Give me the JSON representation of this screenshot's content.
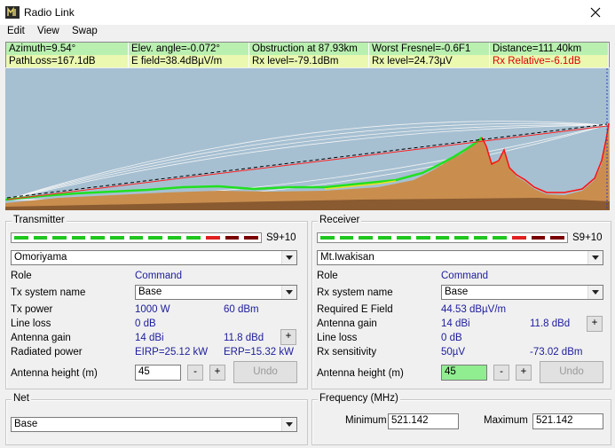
{
  "window": {
    "title": "Radio Link"
  },
  "menu": [
    "Edit",
    "View",
    "Swap"
  ],
  "status": {
    "row1": [
      "Azimuth=9.54°",
      "Elev. angle=-0.072°",
      "Obstruction at 87.93km",
      "Worst Fresnel=-0.6F1",
      "Distance=111.40km"
    ],
    "row2": [
      "PathLoss=167.1dB",
      "E field=38.4dBµV/m",
      "Rx level=-79.1dBm",
      "Rx level=24.73µV",
      "Rx Relative=-6.1dB"
    ]
  },
  "transmitter": {
    "legend": "Transmitter",
    "meter_label": "S9+10",
    "station": "Omoriyama",
    "role_label": "Role",
    "role": "Command",
    "system_label": "Tx system name",
    "system": "Base",
    "power_label": "Tx power",
    "power_w": "1000 W",
    "power_dbm": "60 dBm",
    "line_loss_label": "Line loss",
    "line_loss": "0 dB",
    "gain_label": "Antenna gain",
    "gain_dbi": "14 dBi",
    "gain_dbd": "11.8 dBd",
    "gain_button": "+",
    "radiated_label": "Radiated power",
    "eirp": "EIRP=25.12 kW",
    "erp": "ERP=15.32 kW",
    "height_label": "Antenna height (m)",
    "height": 45,
    "minus": "-",
    "plus": "+",
    "undo": "Undo"
  },
  "receiver": {
    "legend": "Receiver",
    "meter_label": "S9+10",
    "station": "Mt.Iwakisan",
    "role_label": "Role",
    "role": "Command",
    "system_label": "Rx system name",
    "system": "Base",
    "field_label": "Required E Field",
    "field": "44.53 dBµV/m",
    "gain_label": "Antenna gain",
    "gain_dbi": "14 dBi",
    "gain_dbd": "11.8 dBd",
    "gain_button": "+",
    "line_loss_label": "Line loss",
    "line_loss": "0 dB",
    "sensitivity_label": "Rx sensitivity",
    "sensitivity_uv": "50µV",
    "sensitivity_dbm": "-73.02 dBm",
    "height_label": "Antenna height (m)",
    "height": 45,
    "minus": "-",
    "plus": "+",
    "undo": "Undo"
  },
  "net": {
    "legend": "Net",
    "system": "Base"
  },
  "frequency": {
    "legend": "Frequency (MHz)",
    "min_label": "Minimum",
    "min": 521.142,
    "max_label": "Maximum",
    "max": 521.142
  }
}
